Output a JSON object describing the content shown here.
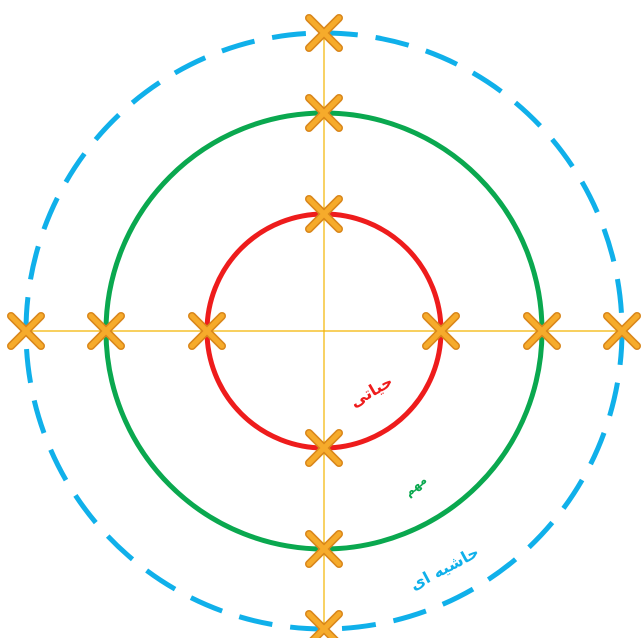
{
  "colors": {
    "critical": "#ee1c1c",
    "important": "#0aa84f",
    "marginal": "#10b0ea",
    "axis": "#f4b300",
    "marker_fill": "#f6ab2b",
    "marker_edge": "#d9861a"
  },
  "marker_icon": "x-cross-marker-icon",
  "rings": [
    {
      "key": "critical",
      "label": "حیاتی",
      "style": "solid"
    },
    {
      "key": "important",
      "label": "مهم",
      "style": "solid"
    },
    {
      "key": "marginal",
      "label": "حاشیه ای",
      "style": "dashed"
    }
  ]
}
